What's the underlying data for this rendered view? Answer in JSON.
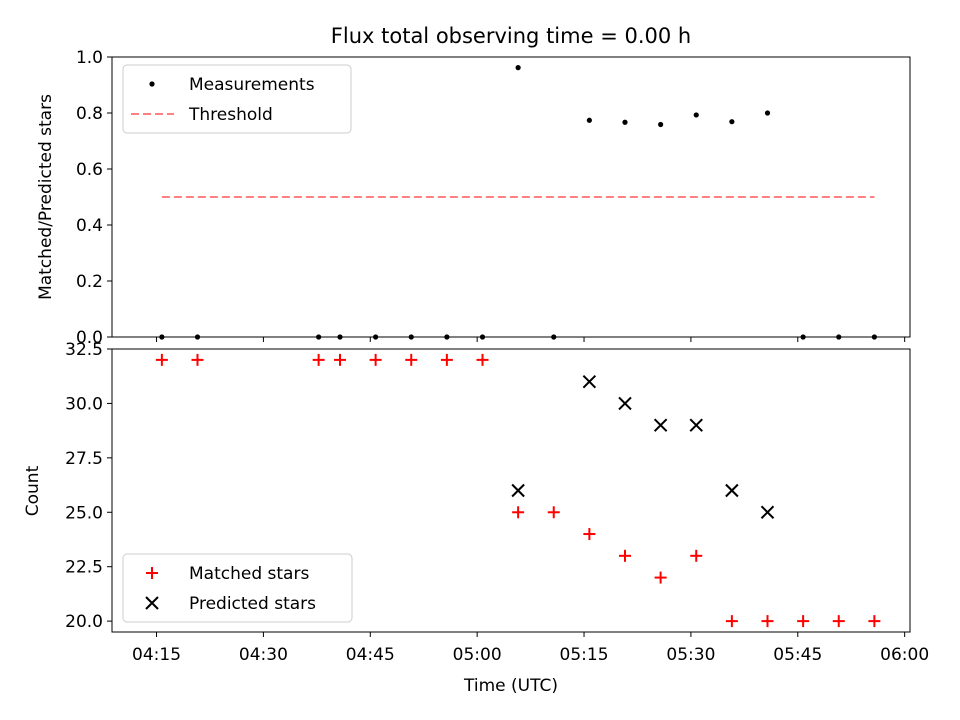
{
  "chart_data": [
    {
      "type": "scatter",
      "title": "Flux total observing time = 0.00 h",
      "xlabel": "",
      "ylabel": "Matched/Predicted stars",
      "ylim": [
        0,
        1.0
      ],
      "yticks": [
        "0.0",
        "0.2",
        "0.4",
        "0.6",
        "0.8",
        "1.0"
      ],
      "legend_position": "top-left",
      "series": [
        {
          "name": "Measurements",
          "marker": "dot",
          "color": "#000000",
          "points": [
            {
              "t": "04:15:45",
              "y": 0.0
            },
            {
              "t": "04:20:45",
              "y": 0.0
            },
            {
              "t": "04:37:45",
              "y": 0.0
            },
            {
              "t": "04:40:45",
              "y": 0.0
            },
            {
              "t": "04:45:45",
              "y": 0.0
            },
            {
              "t": "04:50:45",
              "y": 0.0
            },
            {
              "t": "04:55:45",
              "y": 0.0
            },
            {
              "t": "05:00:45",
              "y": 0.0
            },
            {
              "t": "05:05:45",
              "y": 0.962
            },
            {
              "t": "05:10:45",
              "y": 0.0
            },
            {
              "t": "05:15:45",
              "y": 0.774
            },
            {
              "t": "05:20:45",
              "y": 0.767
            },
            {
              "t": "05:25:45",
              "y": 0.759
            },
            {
              "t": "05:30:45",
              "y": 0.793
            },
            {
              "t": "05:35:45",
              "y": 0.769
            },
            {
              "t": "05:40:45",
              "y": 0.8
            },
            {
              "t": "05:45:45",
              "y": 0.0
            },
            {
              "t": "05:50:45",
              "y": 0.0
            },
            {
              "t": "05:55:45",
              "y": 0.0
            }
          ]
        },
        {
          "name": "Threshold",
          "marker": "dashed-line",
          "color": "#ff8080",
          "points": [
            {
              "t": "04:15:45",
              "y": 0.5
            },
            {
              "t": "05:55:45",
              "y": 0.5
            }
          ]
        }
      ]
    },
    {
      "type": "scatter",
      "title": "",
      "xlabel": "Time (UTC)",
      "ylabel": "Count",
      "ylim": [
        19.5,
        32.5
      ],
      "yticks": [
        "20.0",
        "22.5",
        "25.0",
        "27.5",
        "30.0",
        "32.5"
      ],
      "xlim": [
        "04:08:45",
        "06:00:45"
      ],
      "xticks": [
        "04:15",
        "04:30",
        "04:45",
        "05:00",
        "05:15",
        "05:30",
        "05:45",
        "06:00"
      ],
      "legend_position": "bottom-left",
      "series": [
        {
          "name": "Matched stars",
          "marker": "plus",
          "color": "#ff0000",
          "points": [
            {
              "t": "04:15:45",
              "y": 32
            },
            {
              "t": "04:20:45",
              "y": 32
            },
            {
              "t": "04:37:45",
              "y": 32
            },
            {
              "t": "04:40:45",
              "y": 32
            },
            {
              "t": "04:45:45",
              "y": 32
            },
            {
              "t": "04:50:45",
              "y": 32
            },
            {
              "t": "04:55:45",
              "y": 32
            },
            {
              "t": "05:00:45",
              "y": 32
            },
            {
              "t": "05:05:45",
              "y": 25
            },
            {
              "t": "05:10:45",
              "y": 25
            },
            {
              "t": "05:15:45",
              "y": 24
            },
            {
              "t": "05:20:45",
              "y": 23
            },
            {
              "t": "05:25:45",
              "y": 22
            },
            {
              "t": "05:30:45",
              "y": 23
            },
            {
              "t": "05:35:45",
              "y": 20
            },
            {
              "t": "05:40:45",
              "y": 20
            },
            {
              "t": "05:45:45",
              "y": 20
            },
            {
              "t": "05:50:45",
              "y": 20
            },
            {
              "t": "05:55:45",
              "y": 20
            }
          ]
        },
        {
          "name": "Predicted stars",
          "marker": "x",
          "color": "#000000",
          "points": [
            {
              "t": "05:05:45",
              "y": 26
            },
            {
              "t": "05:15:45",
              "y": 31
            },
            {
              "t": "05:20:45",
              "y": 30
            },
            {
              "t": "05:25:45",
              "y": 29
            },
            {
              "t": "05:30:45",
              "y": 29
            },
            {
              "t": "05:35:45",
              "y": 26
            },
            {
              "t": "05:40:45",
              "y": 25
            }
          ]
        }
      ]
    }
  ]
}
